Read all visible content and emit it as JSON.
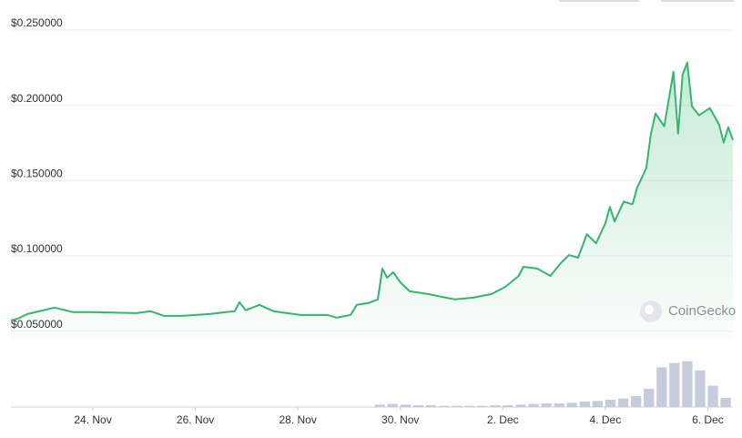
{
  "chart_data": {
    "type": "line",
    "xlim": [
      22.4,
      36.49
    ],
    "xticks": [
      {
        "value": 24,
        "label": "24. Nov"
      },
      {
        "value": 26,
        "label": "26. Nov"
      },
      {
        "value": 28,
        "label": "28. Nov"
      },
      {
        "value": 30,
        "label": "30. Nov"
      },
      {
        "value": 32,
        "label": "2. Dec"
      },
      {
        "value": 34,
        "label": "4. Dec"
      },
      {
        "value": 36,
        "label": "6. Dec"
      }
    ],
    "ylim": [
      0.045,
      0.26
    ],
    "yticks": [
      {
        "value": 0.25,
        "label": "$0.250000"
      },
      {
        "value": 0.2,
        "label": "$0.200000"
      },
      {
        "value": 0.15,
        "label": "$0.150000"
      },
      {
        "value": 0.1,
        "label": "$0.100000"
      },
      {
        "value": 0.05,
        "label": "$0.050000"
      }
    ],
    "y2lim": [
      0,
      100
    ],
    "grid": true,
    "watermark": "CoinGecko",
    "series": [
      {
        "color": "#35b56d",
        "fill": true,
        "x": [
          22.4,
          22.54,
          22.72,
          23.25,
          23.61,
          23.96,
          24.85,
          25.12,
          25.39,
          25.74,
          26.27,
          26.77,
          26.86,
          26.98,
          27.25,
          27.52,
          28.05,
          28.58,
          28.76,
          29.03,
          29.15,
          29.38,
          29.56,
          29.65,
          29.74,
          29.86,
          30.0,
          30.18,
          30.54,
          30.89,
          31.07,
          31.42,
          31.78,
          32.05,
          32.31,
          32.4,
          32.67,
          32.93,
          33.11,
          33.29,
          33.47,
          33.64,
          33.82,
          34.0,
          34.09,
          34.18,
          34.36,
          34.53,
          34.62,
          34.8,
          34.89,
          34.98,
          35.15,
          35.33,
          35.42,
          35.51,
          35.6,
          35.69,
          35.83,
          36.04,
          36.22,
          36.31,
          36.4,
          36.49
        ],
        "values": [
          0.0572,
          0.0584,
          0.0614,
          0.0657,
          0.0627,
          0.0627,
          0.062,
          0.0633,
          0.0602,
          0.0602,
          0.0614,
          0.0633,
          0.0693,
          0.0639,
          0.0675,
          0.0633,
          0.0608,
          0.0608,
          0.059,
          0.0608,
          0.0675,
          0.0687,
          0.0711,
          0.0916,
          0.0855,
          0.0892,
          0.0825,
          0.0765,
          0.0747,
          0.0723,
          0.0711,
          0.0723,
          0.0747,
          0.0795,
          0.0867,
          0.0928,
          0.0916,
          0.0867,
          0.0945,
          0.1006,
          0.0988,
          0.1144,
          0.1084,
          0.1217,
          0.1325,
          0.1229,
          0.1361,
          0.1343,
          0.1452,
          0.1584,
          0.1813,
          0.1946,
          0.1861,
          0.2223,
          0.1813,
          0.2205,
          0.2283,
          0.1994,
          0.1934,
          0.1982,
          0.1873,
          0.1753,
          0.1855,
          0.1771
        ]
      },
      {
        "type": "bar",
        "axis": "y2",
        "color": "#c5ccdb",
        "x": [
          29.6,
          29.85,
          30.1,
          30.35,
          30.6,
          30.85,
          31.1,
          31.35,
          31.6,
          31.85,
          32.1,
          32.35,
          32.6,
          32.85,
          33.1,
          33.35,
          33.6,
          33.85,
          34.1,
          34.35,
          34.6,
          34.85,
          35.1,
          35.35,
          35.6,
          35.85,
          36.1,
          36.35
        ],
        "values": [
          4,
          5,
          4,
          3,
          3,
          2,
          2,
          2,
          2,
          3,
          3,
          4,
          5,
          6,
          6,
          7,
          9,
          10,
          12,
          14,
          18,
          30,
          65,
          72,
          75,
          60,
          35,
          15
        ]
      }
    ]
  }
}
